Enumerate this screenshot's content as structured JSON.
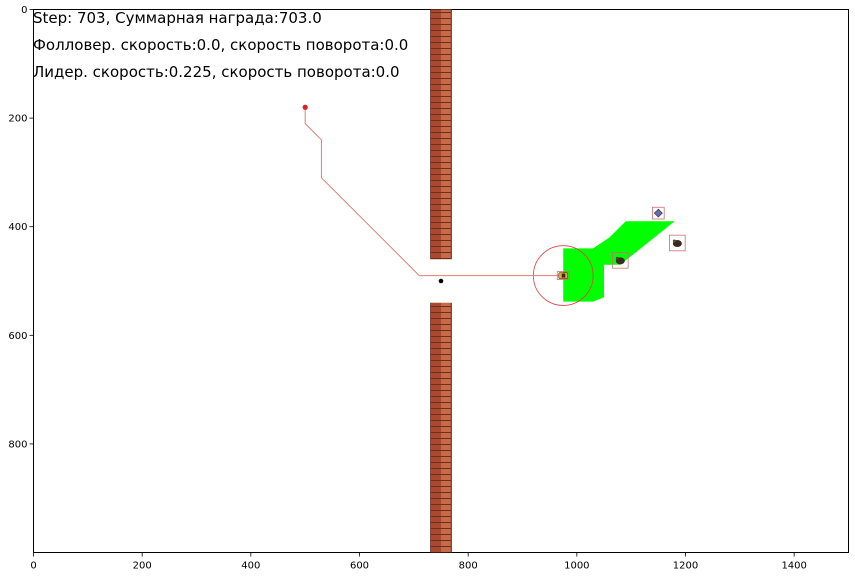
{
  "info": {
    "line1": "Step: 703, Суммарная награда:703.0",
    "line2": "Фолловер. скорость:0.0, скорость поворота:0.0",
    "line3": "Лидер. скорость:0.225, скорость поворота:0.0"
  },
  "axes": {
    "x_ticks": [
      "0",
      "200",
      "400",
      "600",
      "800",
      "1000",
      "1200",
      "1400"
    ],
    "y_ticks": [
      "0",
      "200",
      "400",
      "600",
      "800"
    ]
  },
  "colors": {
    "route": "#e08070",
    "vision": "#00ff00",
    "wall": "#b5553b",
    "start_point": "#e02020",
    "leader_box": "#c87070",
    "obstacle_box": "#c87070"
  },
  "world": {
    "x_range": [
      0,
      1500
    ],
    "y_range": [
      0,
      1000
    ],
    "walls": [
      {
        "x": [
          730,
          770
        ],
        "y": [
          0,
          460
        ]
      },
      {
        "x": [
          730,
          770
        ],
        "y": [
          540,
          1000
        ]
      }
    ],
    "route": [
      [
        500,
        180
      ],
      [
        500,
        210
      ],
      [
        530,
        240
      ],
      [
        530,
        310
      ],
      [
        710,
        490
      ],
      [
        975,
        490
      ]
    ],
    "start_point": [
      500,
      180
    ],
    "gate_point": [
      750,
      500
    ],
    "leader_position": [
      975,
      490
    ],
    "leader_circle_radius": 55,
    "vision_polygon": [
      [
        975,
        440
      ],
      [
        1030,
        440
      ],
      [
        1060,
        420
      ],
      [
        1090,
        390
      ],
      [
        1180,
        390
      ],
      [
        1080,
        470
      ],
      [
        1050,
        470
      ],
      [
        1050,
        530
      ],
      [
        1030,
        538
      ],
      [
        975,
        538
      ]
    ],
    "obstacles": [
      {
        "name": "obstacle-hedgehog-1",
        "center": [
          1080,
          462
        ],
        "box": 16
      },
      {
        "name": "obstacle-cube",
        "center": [
          1150,
          375
        ],
        "box": 12
      },
      {
        "name": "obstacle-hedgehog-2",
        "center": [
          1185,
          430
        ],
        "box": 16
      }
    ]
  }
}
